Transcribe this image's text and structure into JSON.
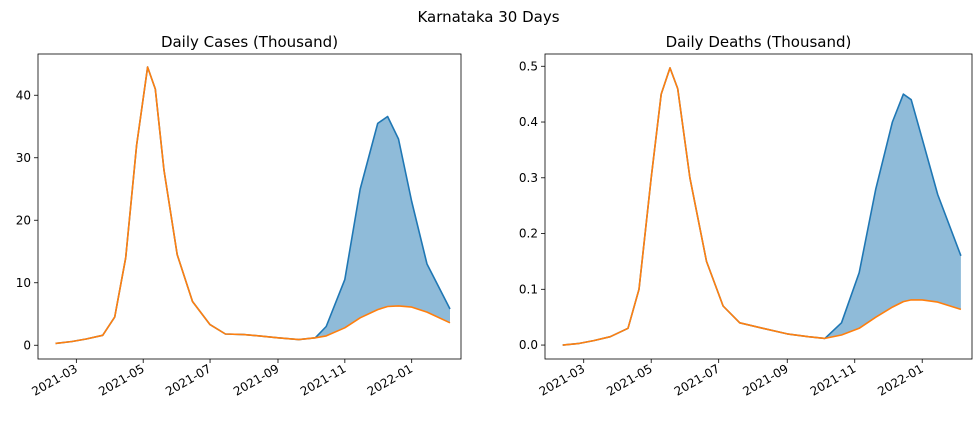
{
  "figure": {
    "title": "Karnataka 30 Days"
  },
  "colors": {
    "blue": "#1f77b4",
    "orange": "#ff7f0e",
    "fill": "#1f77b4",
    "fill_opacity": 0.5
  },
  "chart_data": [
    {
      "type": "area",
      "title": "Daily Cases (Thousand)",
      "xlabel": "",
      "ylabel": "",
      "x_ticks": [
        "2021-03",
        "2021-05",
        "2021-07",
        "2021-09",
        "2021-11",
        "2022-01"
      ],
      "y_ticks": [
        "0",
        "10",
        "20",
        "30",
        "40"
      ],
      "xlim": [
        "2021-01-25",
        "2022-02-15"
      ],
      "ylim": [
        -2.2,
        46.6
      ],
      "x": [
        "2021-02-10",
        "2021-02-25",
        "2021-03-10",
        "2021-03-25",
        "2021-04-05",
        "2021-04-15",
        "2021-04-25",
        "2021-05-05",
        "2021-05-12",
        "2021-05-20",
        "2021-06-01",
        "2021-06-15",
        "2021-07-01",
        "2021-07-15",
        "2021-08-01",
        "2021-08-15",
        "2021-09-01",
        "2021-09-20",
        "2021-10-05",
        "2021-10-15",
        "2021-11-01",
        "2021-11-15",
        "2021-12-01",
        "2021-12-10",
        "2021-12-20",
        "2022-01-01",
        "2022-01-15",
        "2022-02-05"
      ],
      "series": [
        {
          "values": [
            0.3,
            0.6,
            1.0,
            1.6,
            4.5,
            14.0,
            32.0,
            44.5,
            41.0,
            28.0,
            14.5,
            7.0,
            3.3,
            1.8,
            1.7,
            1.5,
            1.2,
            0.9,
            1.2,
            3.0,
            10.5,
            25.0,
            35.5,
            36.6,
            33.0,
            23.0,
            13.0,
            5.8
          ]
        },
        {
          "values": [
            0.3,
            0.6,
            1.0,
            1.6,
            4.5,
            14.0,
            32.0,
            44.5,
            41.0,
            28.0,
            14.5,
            7.0,
            3.3,
            1.8,
            1.7,
            1.5,
            1.2,
            0.9,
            1.2,
            1.5,
            2.8,
            4.4,
            5.7,
            6.2,
            6.3,
            6.1,
            5.3,
            3.6
          ]
        }
      ],
      "shaded_between_series": true
    },
    {
      "type": "area",
      "title": "Daily Deaths (Thousand)",
      "xlabel": "",
      "ylabel": "",
      "x_ticks": [
        "2021-03",
        "2021-05",
        "2021-07",
        "2021-09",
        "2021-11",
        "2022-01"
      ],
      "y_ticks": [
        "0.0",
        "0.1",
        "0.2",
        "0.3",
        "0.4",
        "0.5"
      ],
      "xlim": [
        "2021-01-25",
        "2022-02-15"
      ],
      "ylim": [
        -0.025,
        0.522
      ],
      "x": [
        "2021-02-10",
        "2021-02-25",
        "2021-03-10",
        "2021-03-25",
        "2021-04-10",
        "2021-04-20",
        "2021-05-01",
        "2021-05-10",
        "2021-05-18",
        "2021-05-25",
        "2021-06-05",
        "2021-06-20",
        "2021-07-05",
        "2021-07-20",
        "2021-08-10",
        "2021-09-01",
        "2021-09-20",
        "2021-10-05",
        "2021-10-20",
        "2021-11-05",
        "2021-11-20",
        "2021-12-05",
        "2021-12-15",
        "2021-12-22",
        "2022-01-01",
        "2022-01-15",
        "2022-02-05"
      ],
      "series": [
        {
          "values": [
            0.0,
            0.003,
            0.008,
            0.015,
            0.03,
            0.1,
            0.3,
            0.45,
            0.497,
            0.46,
            0.3,
            0.15,
            0.07,
            0.04,
            0.03,
            0.02,
            0.015,
            0.012,
            0.04,
            0.13,
            0.28,
            0.4,
            0.45,
            0.44,
            0.37,
            0.27,
            0.16
          ]
        },
        {
          "values": [
            0.0,
            0.003,
            0.008,
            0.015,
            0.03,
            0.1,
            0.3,
            0.45,
            0.497,
            0.46,
            0.3,
            0.15,
            0.07,
            0.04,
            0.03,
            0.02,
            0.015,
            0.012,
            0.018,
            0.03,
            0.05,
            0.068,
            0.078,
            0.081,
            0.081,
            0.077,
            0.064
          ]
        }
      ],
      "shaded_between_series": true
    }
  ]
}
